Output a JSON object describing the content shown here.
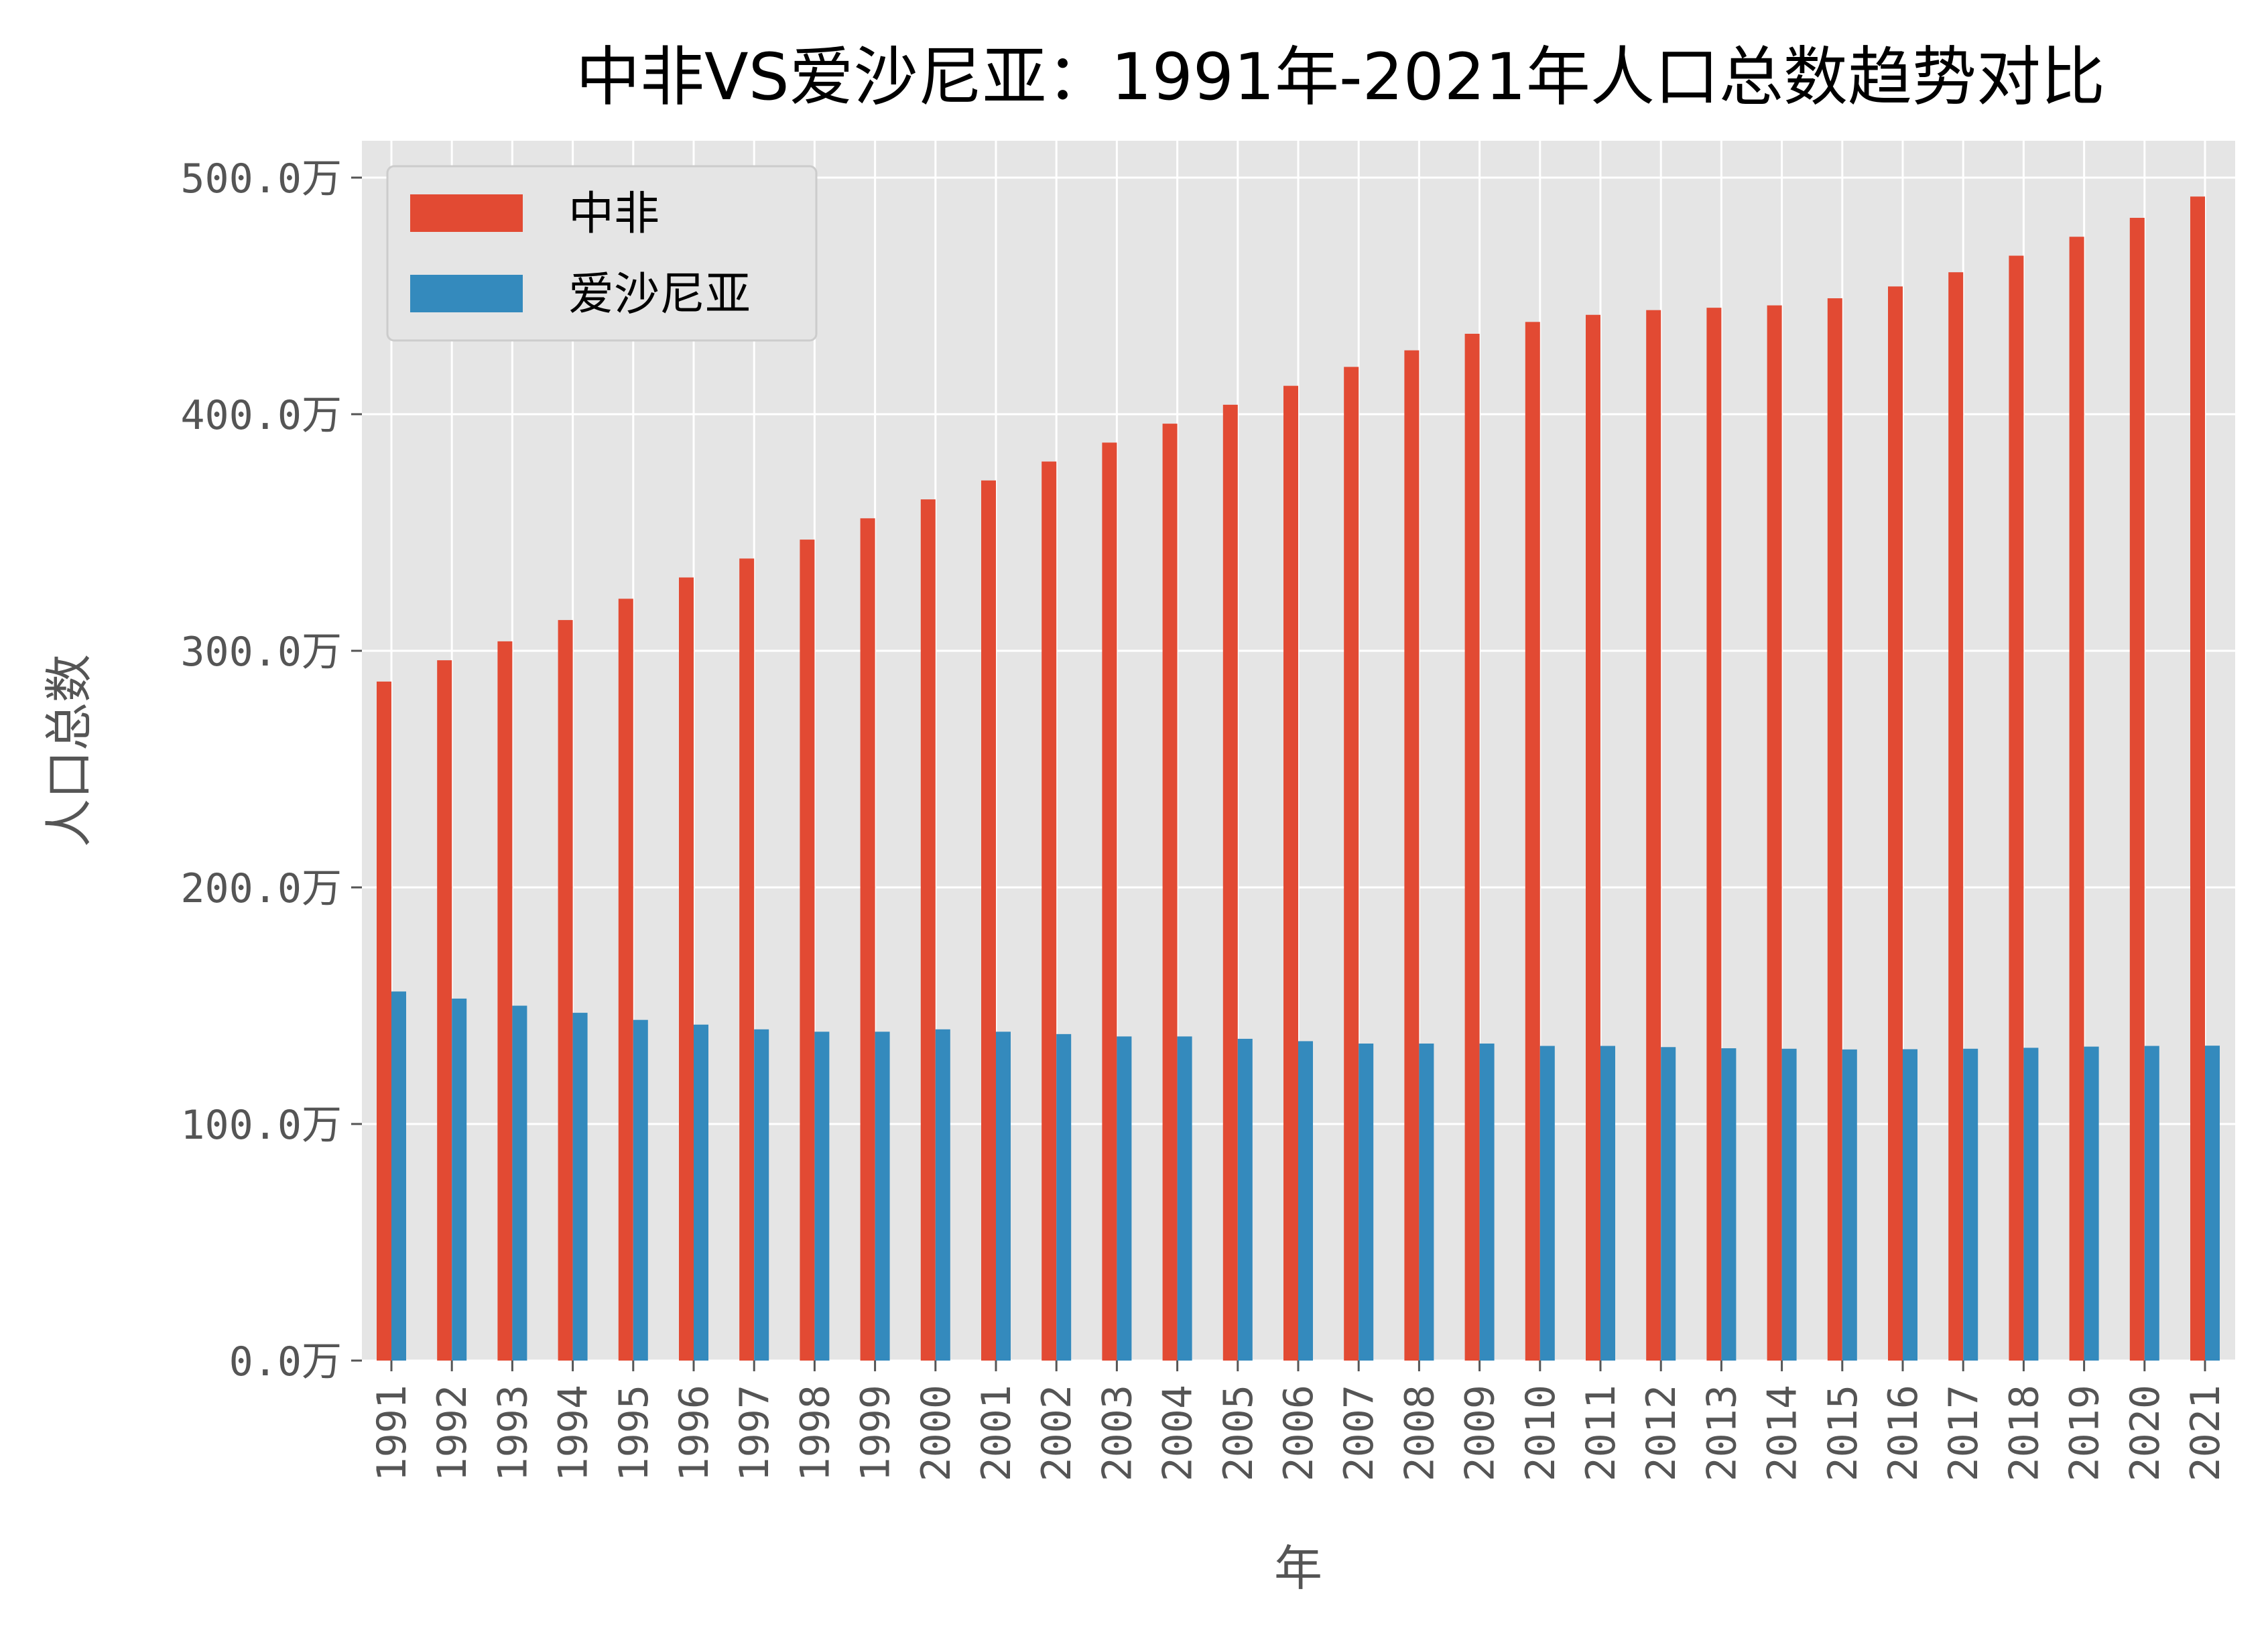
{
  "chart_data": {
    "type": "bar",
    "title": "中非VS爱沙尼亚：1991年-2021年人口总数趋势对比",
    "xlabel": "年",
    "ylabel": "人口总数",
    "ylim": [
      0,
      5150000
    ],
    "y_ticks": [
      0,
      1000000,
      2000000,
      3000000,
      4000000,
      5000000
    ],
    "y_tick_labels": [
      "0.0万",
      "100.0万",
      "200.0万",
      "300.0万",
      "400.0万",
      "500.0万"
    ],
    "grid": true,
    "legend_position": "top-left",
    "categories": [
      "1991",
      "1992",
      "1993",
      "1994",
      "1995",
      "1996",
      "1997",
      "1998",
      "1999",
      "2000",
      "2001",
      "2002",
      "2003",
      "2004",
      "2005",
      "2006",
      "2007",
      "2008",
      "2009",
      "2010",
      "2011",
      "2012",
      "2013",
      "2014",
      "2015",
      "2016",
      "2017",
      "2018",
      "2019",
      "2020",
      "2021"
    ],
    "series": [
      {
        "name": "中非",
        "color": "#E24A33",
        "values": [
          2870000,
          2960000,
          3040000,
          3130000,
          3220000,
          3310000,
          3390000,
          3470000,
          3560000,
          3640000,
          3720000,
          3800000,
          3880000,
          3960000,
          4040000,
          4120000,
          4200000,
          4270000,
          4340000,
          4390000,
          4420000,
          4440000,
          4450000,
          4460000,
          4490000,
          4540000,
          4600000,
          4670000,
          4750000,
          4830000,
          4920000
        ]
      },
      {
        "name": "爱沙尼亚",
        "color": "#348ABD",
        "values": [
          1560000,
          1530000,
          1500000,
          1470000,
          1440000,
          1420000,
          1400000,
          1390000,
          1390000,
          1400000,
          1390000,
          1380000,
          1370000,
          1370000,
          1360000,
          1350000,
          1340000,
          1340000,
          1340000,
          1330000,
          1330000,
          1325000,
          1320000,
          1318000,
          1315000,
          1316000,
          1318000,
          1322000,
          1327000,
          1330000,
          1331000
        ]
      }
    ]
  }
}
